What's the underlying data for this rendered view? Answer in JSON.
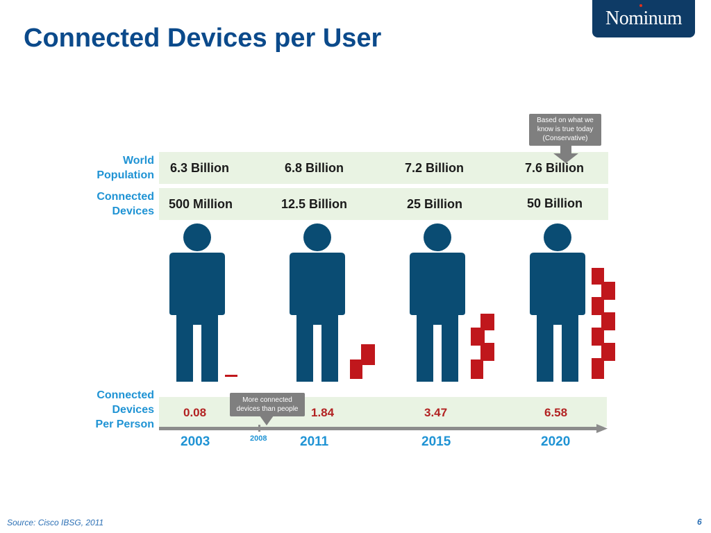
{
  "slide": {
    "title": "Connected Devices per User",
    "logo_text": "Nominum",
    "source": "Source: Cisco IBSG, 2011",
    "page_number": "6"
  },
  "row_labels": {
    "world_population": [
      "World",
      "Population"
    ],
    "connected_devices": [
      "Connected",
      "Devices"
    ],
    "devices_per_person": [
      "Connected",
      "Devices",
      "Per Person"
    ]
  },
  "columns": [
    {
      "year": "2003",
      "population": "6.3 Billion",
      "devices": "500 Million",
      "per_person": "0.08",
      "device_blocks": 0,
      "dash": true
    },
    {
      "year": "2011",
      "population": "6.8 Billion",
      "devices": "12.5 Billion",
      "per_person": "1.84",
      "device_blocks": 2
    },
    {
      "year": "2015",
      "population": "7.2 Billion",
      "devices": "25 Billion",
      "per_person": "3.47",
      "device_blocks": 4
    },
    {
      "year": "2020",
      "population": "7.6 Billion",
      "devices": "50 Billion",
      "per_person": "6.58",
      "device_blocks": 7
    }
  ],
  "extra_year": "2008",
  "callouts": {
    "top": [
      "Based on what we",
      "know is true today",
      "(Conservative)"
    ],
    "bottom": [
      "More connected",
      "devices than people"
    ]
  },
  "colors": {
    "title": "#0b4a8b",
    "accent_blue": "#1f93d4",
    "person": "#0a4c73",
    "device": "#c0171c",
    "band": "#e9f3e3",
    "ratio": "#b22222",
    "logo_bg": "#0e3b66",
    "callout": "#7f7f7f"
  },
  "icons": {
    "person": "person-silhouette-icon",
    "device": "device-block-icon",
    "arrow": "timeline-arrow-icon"
  }
}
